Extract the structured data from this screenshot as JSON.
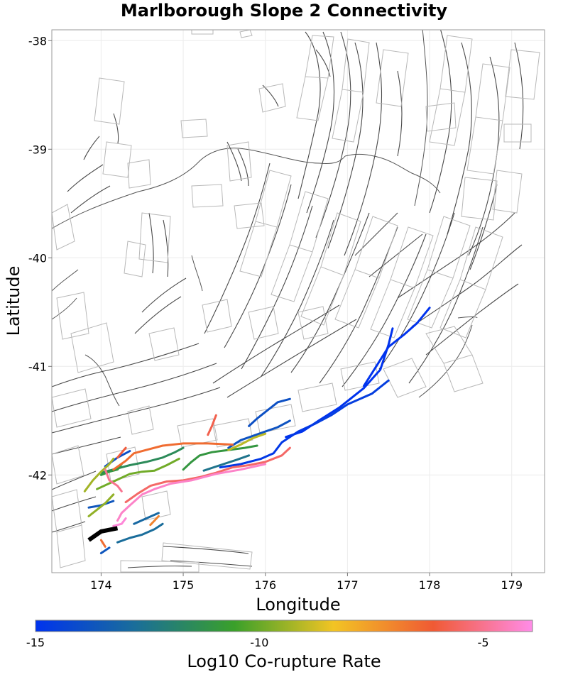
{
  "chart_data": {
    "type": "map",
    "title": "Marlborough Slope 2 Connectivity",
    "xlabel": "Longitude",
    "ylabel": "Latitude",
    "xlim": [
      173.4,
      179.4
    ],
    "ylim": [
      -42.9,
      -37.9
    ],
    "xticks": [
      174,
      175,
      176,
      177,
      178,
      179
    ],
    "yticks": [
      -38,
      -39,
      -40,
      -41,
      -42
    ],
    "x_tick_labels": [
      "174",
      "175",
      "176",
      "177",
      "178",
      "179"
    ],
    "y_tick_labels": [
      "-38",
      "-39",
      "-40",
      "-41",
      "-42"
    ],
    "grid": true,
    "colorbar": {
      "label": "Log10 Co-rupture Rate",
      "range": [
        -15,
        -3.9
      ],
      "ticks": [
        -15,
        -10,
        -5
      ],
      "tick_labels": [
        "-15",
        "-10",
        "-5"
      ],
      "stops": [
        "#0033ee",
        "#1a6e9a",
        "#3aa02a",
        "#f2c424",
        "#f05a34",
        "#ff8ce8"
      ]
    },
    "source_section": {
      "name": "Marlborough Slope 2",
      "color": "#000000",
      "path": [
        [
          173.85,
          -42.6
        ],
        [
          174.0,
          -42.52
        ],
        [
          174.2,
          -42.49
        ]
      ]
    },
    "connected_sections": [
      {
        "rate": -15.0,
        "path": [
          [
            177.2,
            -41.18
          ],
          [
            177.35,
            -41.0
          ],
          [
            177.5,
            -40.82
          ],
          [
            177.7,
            -40.7
          ],
          [
            177.85,
            -40.6
          ],
          [
            178.0,
            -40.46
          ]
        ]
      },
      {
        "rate": -15.0,
        "path": [
          [
            176.25,
            -41.65
          ],
          [
            176.45,
            -41.6
          ],
          [
            176.65,
            -41.5
          ],
          [
            176.9,
            -41.38
          ],
          [
            177.2,
            -41.2
          ],
          [
            177.4,
            -41.03
          ],
          [
            177.5,
            -40.8
          ],
          [
            177.55,
            -40.65
          ]
        ]
      },
      {
        "rate": -14.8,
        "path": [
          [
            175.45,
            -41.93
          ],
          [
            175.7,
            -41.9
          ],
          [
            175.95,
            -41.85
          ],
          [
            176.1,
            -41.8
          ],
          [
            176.2,
            -41.7
          ],
          [
            176.4,
            -41.6
          ],
          [
            176.6,
            -41.53
          ]
        ]
      },
      {
        "rate": -14.6,
        "path": [
          [
            176.6,
            -41.53
          ],
          [
            176.8,
            -41.45
          ],
          [
            177.0,
            -41.35
          ],
          [
            177.3,
            -41.25
          ],
          [
            177.5,
            -41.13
          ]
        ]
      },
      {
        "rate": -14.0,
        "path": [
          [
            174.05,
            -41.92
          ],
          [
            174.2,
            -41.84
          ],
          [
            174.35,
            -41.78
          ]
        ]
      },
      {
        "rate": -13.9,
        "path": [
          [
            175.8,
            -41.55
          ],
          [
            175.9,
            -41.48
          ],
          [
            176.0,
            -41.42
          ],
          [
            176.15,
            -41.33
          ],
          [
            176.3,
            -41.3
          ]
        ]
      },
      {
        "rate": -13.8,
        "path": [
          [
            175.55,
            -41.75
          ],
          [
            175.7,
            -41.68
          ],
          [
            175.85,
            -41.64
          ],
          [
            176.0,
            -41.6
          ],
          [
            176.15,
            -41.56
          ],
          [
            176.3,
            -41.5
          ]
        ]
      },
      {
        "rate": -13.7,
        "path": [
          [
            173.85,
            -42.3
          ],
          [
            174.0,
            -42.28
          ],
          [
            174.15,
            -42.24
          ]
        ]
      },
      {
        "rate": -13.7,
        "path": [
          [
            174.0,
            -42.72
          ],
          [
            174.1,
            -42.67
          ]
        ]
      },
      {
        "rate": -13.0,
        "path": [
          [
            174.4,
            -42.45
          ],
          [
            174.55,
            -42.4
          ],
          [
            174.7,
            -42.35
          ]
        ]
      },
      {
        "rate": -12.8,
        "path": [
          [
            174.2,
            -42.62
          ],
          [
            174.35,
            -42.58
          ],
          [
            174.5,
            -42.55
          ],
          [
            174.65,
            -42.5
          ],
          [
            174.75,
            -42.45
          ]
        ]
      },
      {
        "rate": -12.5,
        "path": [
          [
            175.25,
            -41.96
          ],
          [
            175.45,
            -41.91
          ],
          [
            175.65,
            -41.86
          ],
          [
            175.8,
            -41.82
          ]
        ]
      },
      {
        "rate": -11.5,
        "path": [
          [
            174.0,
            -41.98
          ],
          [
            174.2,
            -41.94
          ],
          [
            174.35,
            -41.91
          ],
          [
            174.55,
            -41.88
          ],
          [
            174.75,
            -41.84
          ],
          [
            174.9,
            -41.79
          ],
          [
            175.0,
            -41.75
          ]
        ]
      },
      {
        "rate": -11.0,
        "path": [
          [
            175.0,
            -41.95
          ],
          [
            175.1,
            -41.88
          ],
          [
            175.2,
            -41.82
          ],
          [
            175.35,
            -41.79
          ],
          [
            175.55,
            -41.77
          ],
          [
            175.75,
            -41.75
          ],
          [
            175.9,
            -41.73
          ]
        ]
      },
      {
        "rate": -11.0,
        "path": [
          [
            174.0,
            -42.0
          ],
          [
            174.1,
            -41.97
          ],
          [
            174.2,
            -41.95
          ],
          [
            174.25,
            -41.9
          ]
        ]
      },
      {
        "rate": -9.9,
        "path": [
          [
            173.95,
            -42.13
          ],
          [
            174.15,
            -42.06
          ],
          [
            174.35,
            -41.99
          ],
          [
            174.5,
            -41.97
          ],
          [
            174.65,
            -41.96
          ],
          [
            174.8,
            -41.91
          ],
          [
            174.95,
            -41.85
          ]
        ]
      },
      {
        "rate": -9.5,
        "path": [
          [
            173.85,
            -42.38
          ],
          [
            173.95,
            -42.32
          ],
          [
            174.05,
            -42.26
          ],
          [
            174.15,
            -42.18
          ]
        ]
      },
      {
        "rate": -9.3,
        "path": [
          [
            173.8,
            -42.15
          ],
          [
            173.9,
            -42.05
          ],
          [
            174.0,
            -41.97
          ],
          [
            174.1,
            -41.9
          ],
          [
            174.15,
            -41.85
          ]
        ]
      },
      {
        "rate": -9.0,
        "path": [
          [
            175.55,
            -41.77
          ],
          [
            175.7,
            -41.72
          ],
          [
            175.85,
            -41.66
          ],
          [
            176.0,
            -41.62
          ]
        ]
      },
      {
        "rate": -7.0,
        "path": [
          [
            174.6,
            -42.46
          ],
          [
            174.65,
            -42.42
          ],
          [
            174.7,
            -42.38
          ]
        ]
      },
      {
        "rate": -6.5,
        "path": [
          [
            174.0,
            -42.6
          ],
          [
            174.05,
            -42.66
          ]
        ]
      },
      {
        "rate": -6.5,
        "path": [
          [
            174.15,
            -41.95
          ],
          [
            174.3,
            -41.87
          ],
          [
            174.4,
            -41.8
          ],
          [
            174.55,
            -41.77
          ],
          [
            174.75,
            -41.73
          ],
          [
            175.0,
            -41.71
          ],
          [
            175.3,
            -41.71
          ],
          [
            175.6,
            -41.72
          ]
        ]
      },
      {
        "rate": -6.0,
        "path": [
          [
            174.2,
            -41.84
          ],
          [
            174.3,
            -41.75
          ]
        ]
      },
      {
        "rate": -5.8,
        "path": [
          [
            175.3,
            -41.63
          ],
          [
            175.35,
            -41.55
          ],
          [
            175.4,
            -41.45
          ]
        ]
      },
      {
        "rate": -5.5,
        "path": [
          [
            174.3,
            -42.25
          ],
          [
            174.45,
            -42.17
          ],
          [
            174.6,
            -42.1
          ],
          [
            174.8,
            -42.06
          ],
          [
            175.0,
            -42.05
          ],
          [
            175.2,
            -42.02
          ],
          [
            175.4,
            -41.98
          ],
          [
            175.6,
            -41.93
          ],
          [
            175.8,
            -41.91
          ],
          [
            176.0,
            -41.88
          ],
          [
            176.2,
            -41.82
          ],
          [
            176.3,
            -41.75
          ]
        ]
      },
      {
        "rate": -5.0,
        "path": [
          [
            174.05,
            -41.95
          ],
          [
            174.1,
            -42.05
          ],
          [
            174.2,
            -42.1
          ],
          [
            174.25,
            -42.15
          ]
        ]
      },
      {
        "rate": -4.3,
        "path": [
          [
            174.2,
            -42.42
          ],
          [
            174.25,
            -42.35
          ],
          [
            174.35,
            -42.28
          ],
          [
            174.5,
            -42.18
          ],
          [
            174.65,
            -42.13
          ],
          [
            174.85,
            -42.08
          ],
          [
            175.1,
            -42.05
          ],
          [
            175.4,
            -41.99
          ],
          [
            175.7,
            -41.95
          ],
          [
            176.0,
            -41.9
          ]
        ]
      },
      {
        "rate": -4.1,
        "path": [
          [
            174.15,
            -42.47
          ],
          [
            174.25,
            -42.45
          ],
          [
            174.3,
            -42.4
          ]
        ]
      }
    ]
  }
}
